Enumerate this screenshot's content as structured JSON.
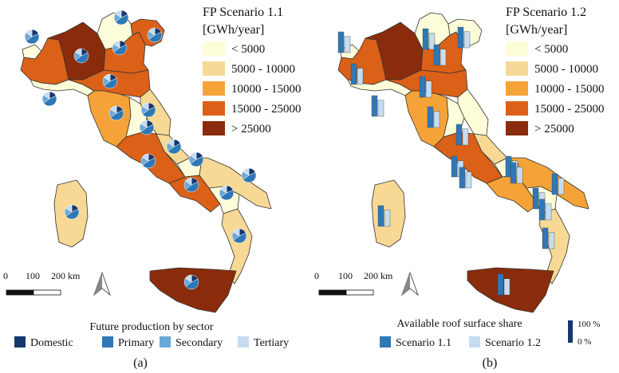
{
  "colors": {
    "class1": "#fefdd9",
    "class2": "#f7d995",
    "class3": "#f5a338",
    "class4": "#db6018",
    "class5": "#8a2c0b",
    "domestic": "#17386e",
    "primary": "#2f78b6",
    "secondary": "#6ba9d8",
    "tertiary": "#c6dcf1",
    "scenario11": "#2f78b6",
    "scenario12": "#c6dcf1"
  },
  "panel_a": {
    "legend_title_line1": "FP Scenario 1.1",
    "legend_title_line2": "[GWh/year]",
    "classes": [
      "< 5000",
      "5000 - 10000",
      "10000 - 15000",
      "15000 - 25000",
      "> 25000"
    ],
    "scale_labels": [
      "0",
      "100",
      "200 km"
    ],
    "sector_legend_title": "Future production by sector",
    "sectors": [
      "Domestic",
      "Primary",
      "Secondary",
      "Tertiary"
    ],
    "caption": "(a)",
    "regions": [
      {
        "id": "aosta",
        "cls": 1
      },
      {
        "id": "piedmont",
        "cls": 4
      },
      {
        "id": "liguria",
        "cls": 1
      },
      {
        "id": "lombardy",
        "cls": 5
      },
      {
        "id": "trentino",
        "cls": 1
      },
      {
        "id": "veneto",
        "cls": 4
      },
      {
        "id": "friuli",
        "cls": 4
      },
      {
        "id": "emilia",
        "cls": 4
      },
      {
        "id": "tuscany",
        "cls": 3
      },
      {
        "id": "umbria",
        "cls": 1
      },
      {
        "id": "marche",
        "cls": 2
      },
      {
        "id": "lazio",
        "cls": 4
      },
      {
        "id": "abruzzo",
        "cls": 2
      },
      {
        "id": "molise",
        "cls": 1
      },
      {
        "id": "campania",
        "cls": 4
      },
      {
        "id": "puglia",
        "cls": 2
      },
      {
        "id": "basilicata",
        "cls": 1
      },
      {
        "id": "calabria",
        "cls": 2
      },
      {
        "id": "sicily",
        "cls": 5
      },
      {
        "id": "sardinia",
        "cls": 2
      }
    ]
  },
  "panel_b": {
    "legend_title_line1": "FP Scenario 1.2",
    "legend_title_line2": "[GWh/year]",
    "classes": [
      "< 5000",
      "5000 - 10000",
      "10000 - 15000",
      "15000 - 25000",
      "> 25000"
    ],
    "scale_labels": [
      "0",
      "100",
      "200 km"
    ],
    "share_legend_title": "Available roof surface share",
    "scenarios": [
      "Scenario 1.1",
      "Scenario 1.2"
    ],
    "share_max_label": "100 %",
    "share_min_label": "0 %",
    "caption": "(b)",
    "regions": [
      {
        "id": "aosta",
        "cls": 1
      },
      {
        "id": "piedmont",
        "cls": 4
      },
      {
        "id": "liguria",
        "cls": 1
      },
      {
        "id": "lombardy",
        "cls": 5
      },
      {
        "id": "trentino",
        "cls": 1
      },
      {
        "id": "veneto",
        "cls": 4
      },
      {
        "id": "friuli",
        "cls": 1
      },
      {
        "id": "emilia",
        "cls": 4
      },
      {
        "id": "tuscany",
        "cls": 3
      },
      {
        "id": "umbria",
        "cls": 1
      },
      {
        "id": "marche",
        "cls": 1
      },
      {
        "id": "lazio",
        "cls": 4
      },
      {
        "id": "abruzzo",
        "cls": 2
      },
      {
        "id": "molise",
        "cls": 1
      },
      {
        "id": "campania",
        "cls": 3
      },
      {
        "id": "puglia",
        "cls": 3
      },
      {
        "id": "basilicata",
        "cls": 1
      },
      {
        "id": "calabria",
        "cls": 2
      },
      {
        "id": "sicily",
        "cls": 5
      },
      {
        "id": "sardinia",
        "cls": 2
      }
    ]
  }
}
